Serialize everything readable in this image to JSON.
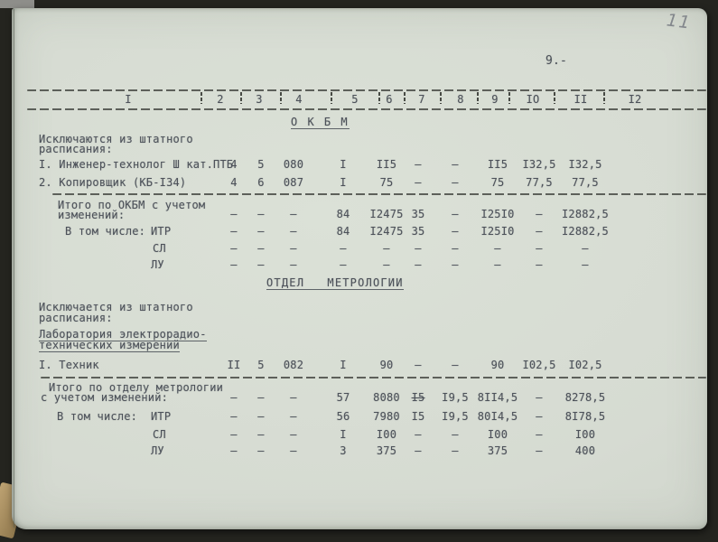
{
  "page": {
    "handwritten_number": "11",
    "page_label": "9.-"
  },
  "table": {
    "header_columns": [
      "I",
      "2",
      "3",
      "4",
      "5",
      "6",
      "7",
      "8",
      "9",
      "IO",
      "II",
      "I2"
    ]
  },
  "okbm": {
    "title": "О К Б М",
    "intro_line1": "Исключаются из штатного",
    "intro_line2": "расписания:",
    "rows": [
      {
        "label": "I. Инженер-технолог Ш кат.ПТБ",
        "values": [
          "4",
          "5",
          "080",
          "I",
          "II5",
          "–",
          "–",
          "II5",
          "I32,5",
          "I32,5"
        ]
      },
      {
        "label": "2. Копировщик (КБ-I34)",
        "values": [
          "4",
          "6",
          "087",
          "I",
          "75",
          "–",
          "–",
          "75",
          "77,5",
          "77,5"
        ]
      }
    ],
    "totals_label_line1": "Итого по ОКБМ с учетом",
    "totals_label_line2": "изменений:",
    "totals_values": [
      "–",
      "–",
      "–",
      "84",
      "I2475",
      "35",
      "–",
      "I25I0",
      "–",
      "I2882,5"
    ],
    "including_label": "В том числе:",
    "itr_label": "ИТР",
    "itr_values": [
      "–",
      "–",
      "–",
      "84",
      "I2475",
      "35",
      "–",
      "I25I0",
      "–",
      "I2882,5"
    ],
    "sl_label": "СЛ",
    "sl_values": [
      "–",
      "–",
      "–",
      "–",
      "–",
      "–",
      "–",
      "–",
      "–",
      "–"
    ],
    "lu_label": "ЛУ",
    "lu_values": [
      "–",
      "–",
      "–",
      "–",
      "–",
      "–",
      "–",
      "–",
      "–",
      "–"
    ]
  },
  "metrology": {
    "title": "ОТДЕЛ   МЕТРОЛОГИИ",
    "intro_line1": "Исключается из штатного",
    "intro_line2": "расписания:",
    "lab_line1": "Лаборатория электрорадио-",
    "lab_line2": "технических измерений",
    "rows": [
      {
        "label": "I. Техник",
        "values": [
          "II",
          "5",
          "082",
          "I",
          "90",
          "–",
          "–",
          "90",
          "I02,5",
          "I02,5"
        ]
      }
    ],
    "totals_label_line1": "Итого по отделу метрологии",
    "totals_label_line2": "с учетом изменений:",
    "totals_values": [
      "–",
      "–",
      "–",
      "57",
      "8080",
      "I5",
      "I9,5",
      "8II4,5",
      "–",
      "8278,5"
    ],
    "including_label": "В том числе:",
    "itr_label": "ИТР",
    "itr_values": [
      "–",
      "–",
      "–",
      "56",
      "7980",
      "I5",
      "I9,5",
      "80I4,5",
      "–",
      "8I78,5"
    ],
    "sl_label": "СЛ",
    "sl_values": [
      "–",
      "–",
      "–",
      "I",
      "I00",
      "–",
      "–",
      "I00",
      "–",
      "I00"
    ],
    "lu_label": "ЛУ",
    "lu_values": [
      "–",
      "–",
      "–",
      "3",
      "375",
      "–",
      "–",
      "375",
      "–",
      "400"
    ]
  }
}
